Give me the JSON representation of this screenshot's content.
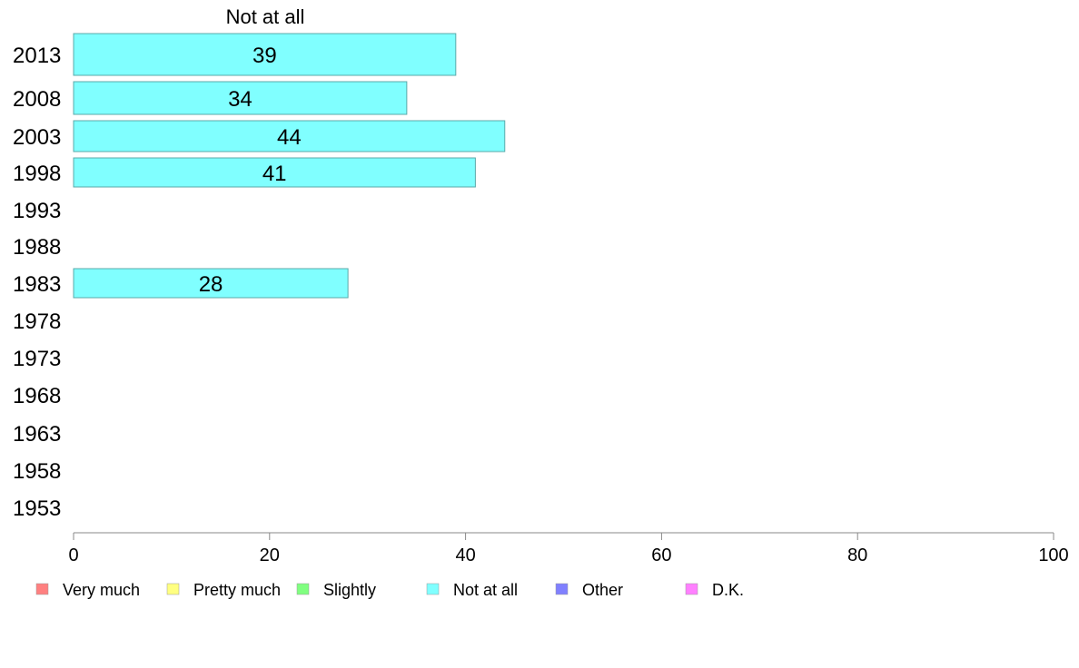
{
  "chart_data": {
    "type": "bar",
    "orientation": "horizontal",
    "title": "Not at all",
    "categories": [
      "2013",
      "2008",
      "2003",
      "1998",
      "1993",
      "1988",
      "1983",
      "1978",
      "1973",
      "1968",
      "1963",
      "1958",
      "1953"
    ],
    "series": [
      {
        "name": "Not at all",
        "color": "#80ffff",
        "values": [
          39,
          34,
          44,
          41,
          null,
          null,
          28,
          null,
          null,
          null,
          null,
          null,
          null
        ]
      }
    ],
    "data_labels": [
      "39",
      "34",
      "44",
      "41",
      "",
      "",
      "28",
      "",
      "",
      "",
      "",
      "",
      ""
    ],
    "xlim": [
      0,
      100
    ],
    "xticks": [
      "0",
      "20",
      "40",
      "60",
      "80",
      "100"
    ],
    "grid": false,
    "legend_position": "bottom",
    "legend": [
      {
        "label": "Very much",
        "color": "#ff8080"
      },
      {
        "label": "Pretty much",
        "color": "#ffff80"
      },
      {
        "label": "Slightly",
        "color": "#80ff80"
      },
      {
        "label": "Not at all",
        "color": "#80ffff"
      },
      {
        "label": "Other",
        "color": "#8080ff"
      },
      {
        "label": "D.K.",
        "color": "#ff80ff"
      }
    ]
  }
}
